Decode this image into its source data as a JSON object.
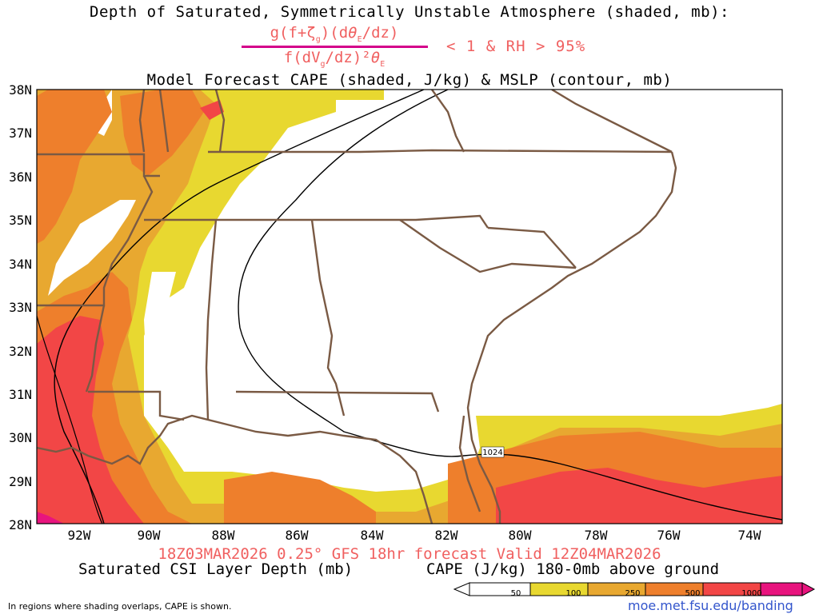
{
  "header": {
    "title_line1": "Depth of Saturated, Symmetrically Unstable Atmosphere (shaded, mb):",
    "formula_numerator": "g(f+ζg)(dθE/dz)",
    "formula_denominator": "f(dVg/dz)²θE",
    "condition": "< 1 & RH > 95%",
    "title_line3": "Model Forecast CAPE (shaded, J/kg) & MSLP (contour, mb)"
  },
  "map": {
    "lat_labels": [
      "38N",
      "37N",
      "36N",
      "35N",
      "34N",
      "33N",
      "32N",
      "31N",
      "30N",
      "29N",
      "28N"
    ],
    "lon_labels": [
      "92W",
      "90W",
      "88W",
      "86W",
      "84W",
      "82W",
      "80W",
      "78W",
      "76W",
      "74W"
    ],
    "isobar_label": "1024"
  },
  "footer": {
    "valid_line": "18Z03MAR2026 0.25° GFS 18hr forecast Valid 12Z04MAR2026",
    "left_label": "Saturated CSI Layer Depth (mb)",
    "right_label": "CAPE (J/kg) 180-0mb above ground",
    "note": "In regions where shading overlaps, CAPE is shown.",
    "url": "moe.met.fsu.edu/banding"
  },
  "colorbar": {
    "ticks": [
      "50",
      "100",
      "250",
      "500",
      "1000"
    ],
    "colors": [
      "#ffffff",
      "#e8d830",
      "#e8a830",
      "#ee7f2c",
      "#f24646",
      "#e8147e"
    ]
  }
}
